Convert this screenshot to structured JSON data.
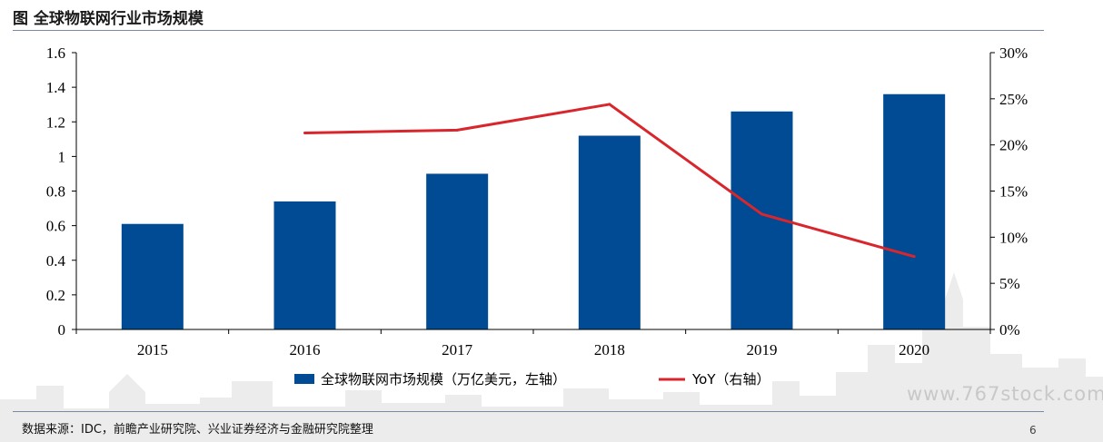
{
  "page": {
    "title": "图 全球物联网行业市场规模",
    "source": "数据来源：IDC，前瞻产业研究院、兴业证券经济与金融研究院整理",
    "page_number": "6",
    "watermark": "www.767stock.com"
  },
  "colors": {
    "bar": "#004b93",
    "line": "#d9262c",
    "axis": "#000000",
    "skyline": "#ececec"
  },
  "chart_data": {
    "type": "bar",
    "categories": [
      "2015",
      "2016",
      "2017",
      "2018",
      "2019",
      "2020"
    ],
    "series": [
      {
        "name": "全球物联网市场规模（万亿美元，左轴）",
        "type": "bar",
        "axis": "left",
        "values": [
          0.61,
          0.74,
          0.9,
          1.12,
          1.26,
          1.36
        ]
      },
      {
        "name": "YoY（右轴）",
        "type": "line",
        "axis": "right",
        "values": [
          null,
          21.3,
          21.6,
          24.4,
          12.5,
          7.9
        ]
      }
    ],
    "y_left": {
      "min": 0,
      "max": 1.6,
      "ticks": [
        "0",
        "0.2",
        "0.4",
        "0.6",
        "0.8",
        "1",
        "1.2",
        "1.4",
        "1.6"
      ]
    },
    "y_right": {
      "min": 0,
      "max": 30,
      "ticks": [
        "0%",
        "5%",
        "10%",
        "15%",
        "20%",
        "25%",
        "30%"
      ]
    },
    "grid": false,
    "legend_position": "bottom"
  }
}
